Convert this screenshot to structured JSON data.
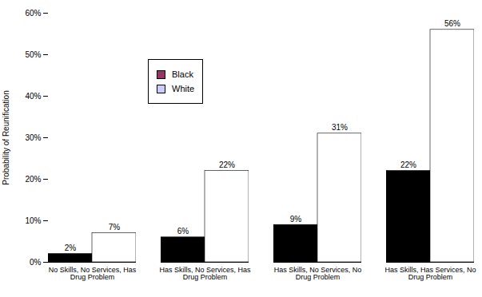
{
  "chart_data": {
    "type": "bar",
    "categories": [
      "No Skills, No Services, Has Drug Problem",
      "Has Skills, No Services, Has Drug Problem",
      "Has Skills, No Services, No Drug Problem",
      "Has Skills, Has Services, No Drug Problem"
    ],
    "series": [
      {
        "name": "Black",
        "color": "#993366",
        "values": [
          2,
          6,
          9,
          22
        ],
        "value_labels": [
          "2%",
          "6%",
          "9%",
          "22%"
        ]
      },
      {
        "name": "White",
        "color": "#CCCCFF",
        "values": [
          7,
          22,
          31,
          56
        ],
        "value_labels": [
          "7%",
          "22%",
          "31%",
          "56%"
        ]
      }
    ],
    "ylabel": "Probability of Reunification",
    "ylim": [
      0,
      60
    ],
    "yticks": [
      {
        "value": 0,
        "label": "0%"
      },
      {
        "value": 10,
        "label": "10%"
      },
      {
        "value": 20,
        "label": "20%"
      },
      {
        "value": 30,
        "label": "30%"
      },
      {
        "value": 40,
        "label": "40%"
      },
      {
        "value": 50,
        "label": "50%"
      },
      {
        "value": 60,
        "label": "60%"
      }
    ],
    "grid": false,
    "legend": "top-left",
    "data_labels": true
  }
}
